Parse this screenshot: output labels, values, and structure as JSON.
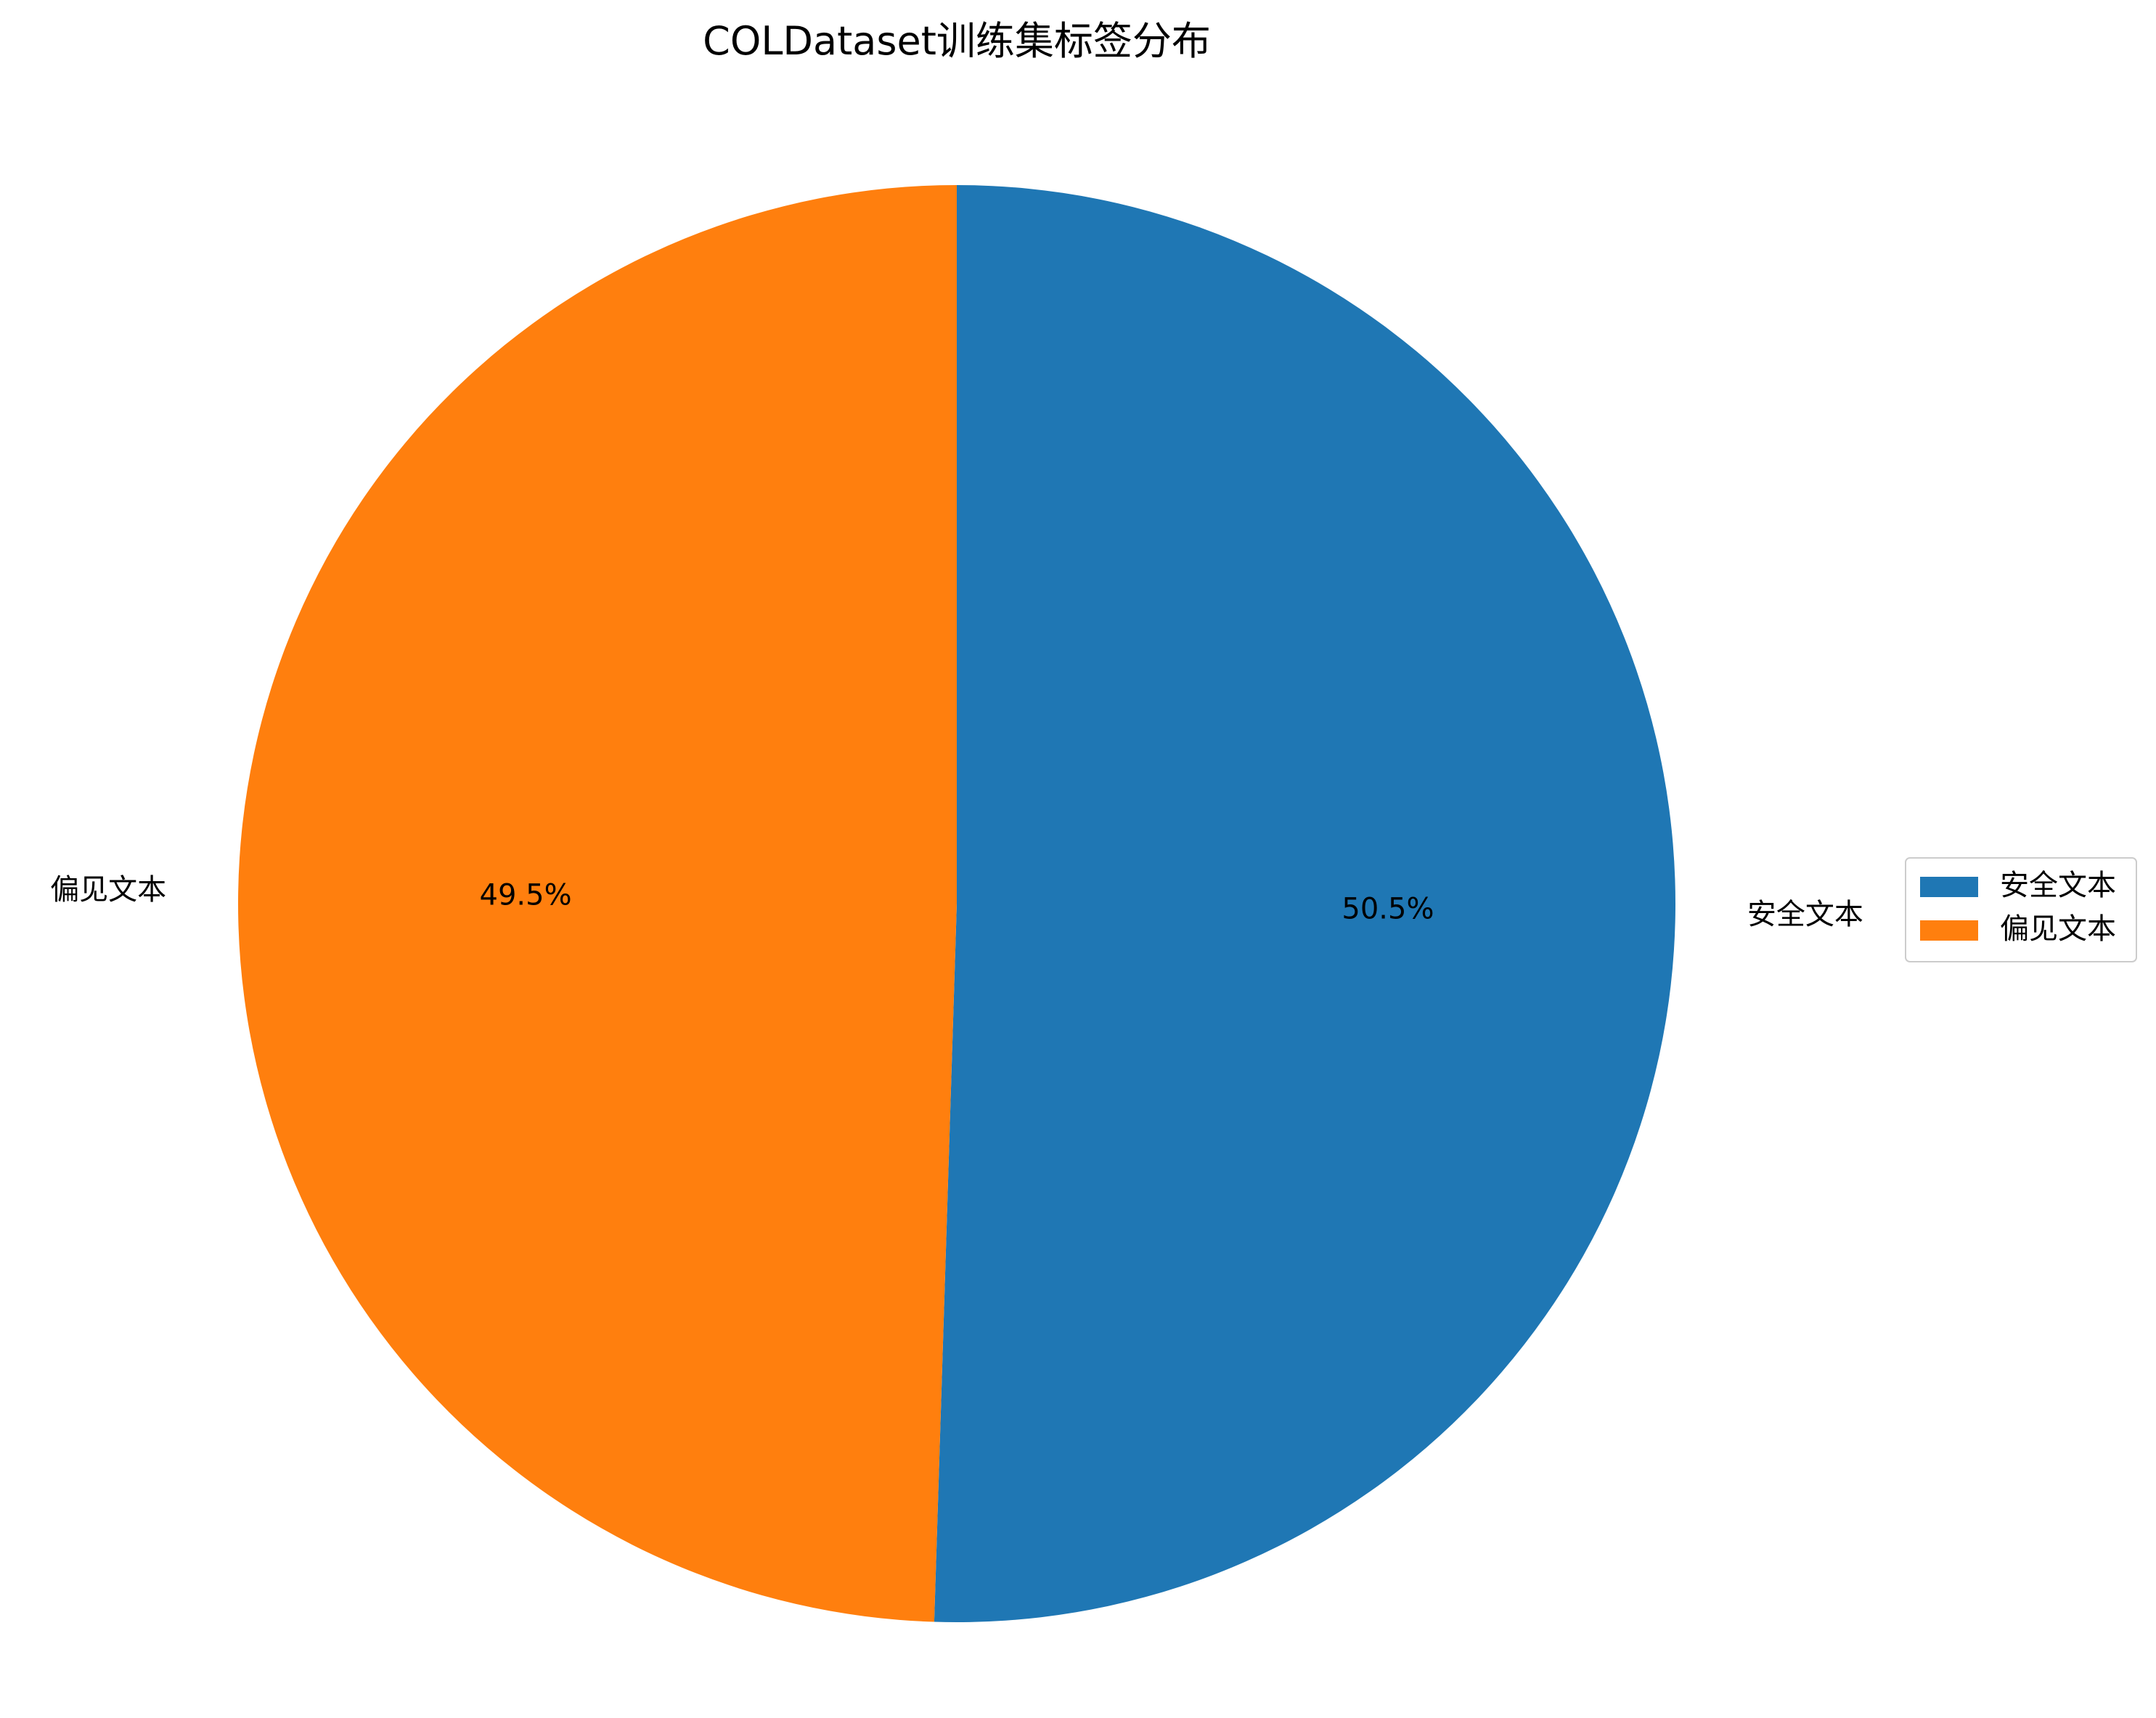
{
  "chart_data": {
    "type": "pie",
    "title": "COLDataset训练集标签分布",
    "categories": [
      "安全文本",
      "偏见文本"
    ],
    "values": [
      50.5,
      49.5
    ],
    "value_labels": [
      "50.5%",
      "49.5%"
    ],
    "colors": [
      "#1f77b4",
      "#ff7f0e"
    ],
    "start_angle_deg": 90,
    "direction": "clockwise",
    "legend": {
      "placement": "right",
      "entries": [
        "安全文本",
        "偏见文本"
      ]
    }
  }
}
